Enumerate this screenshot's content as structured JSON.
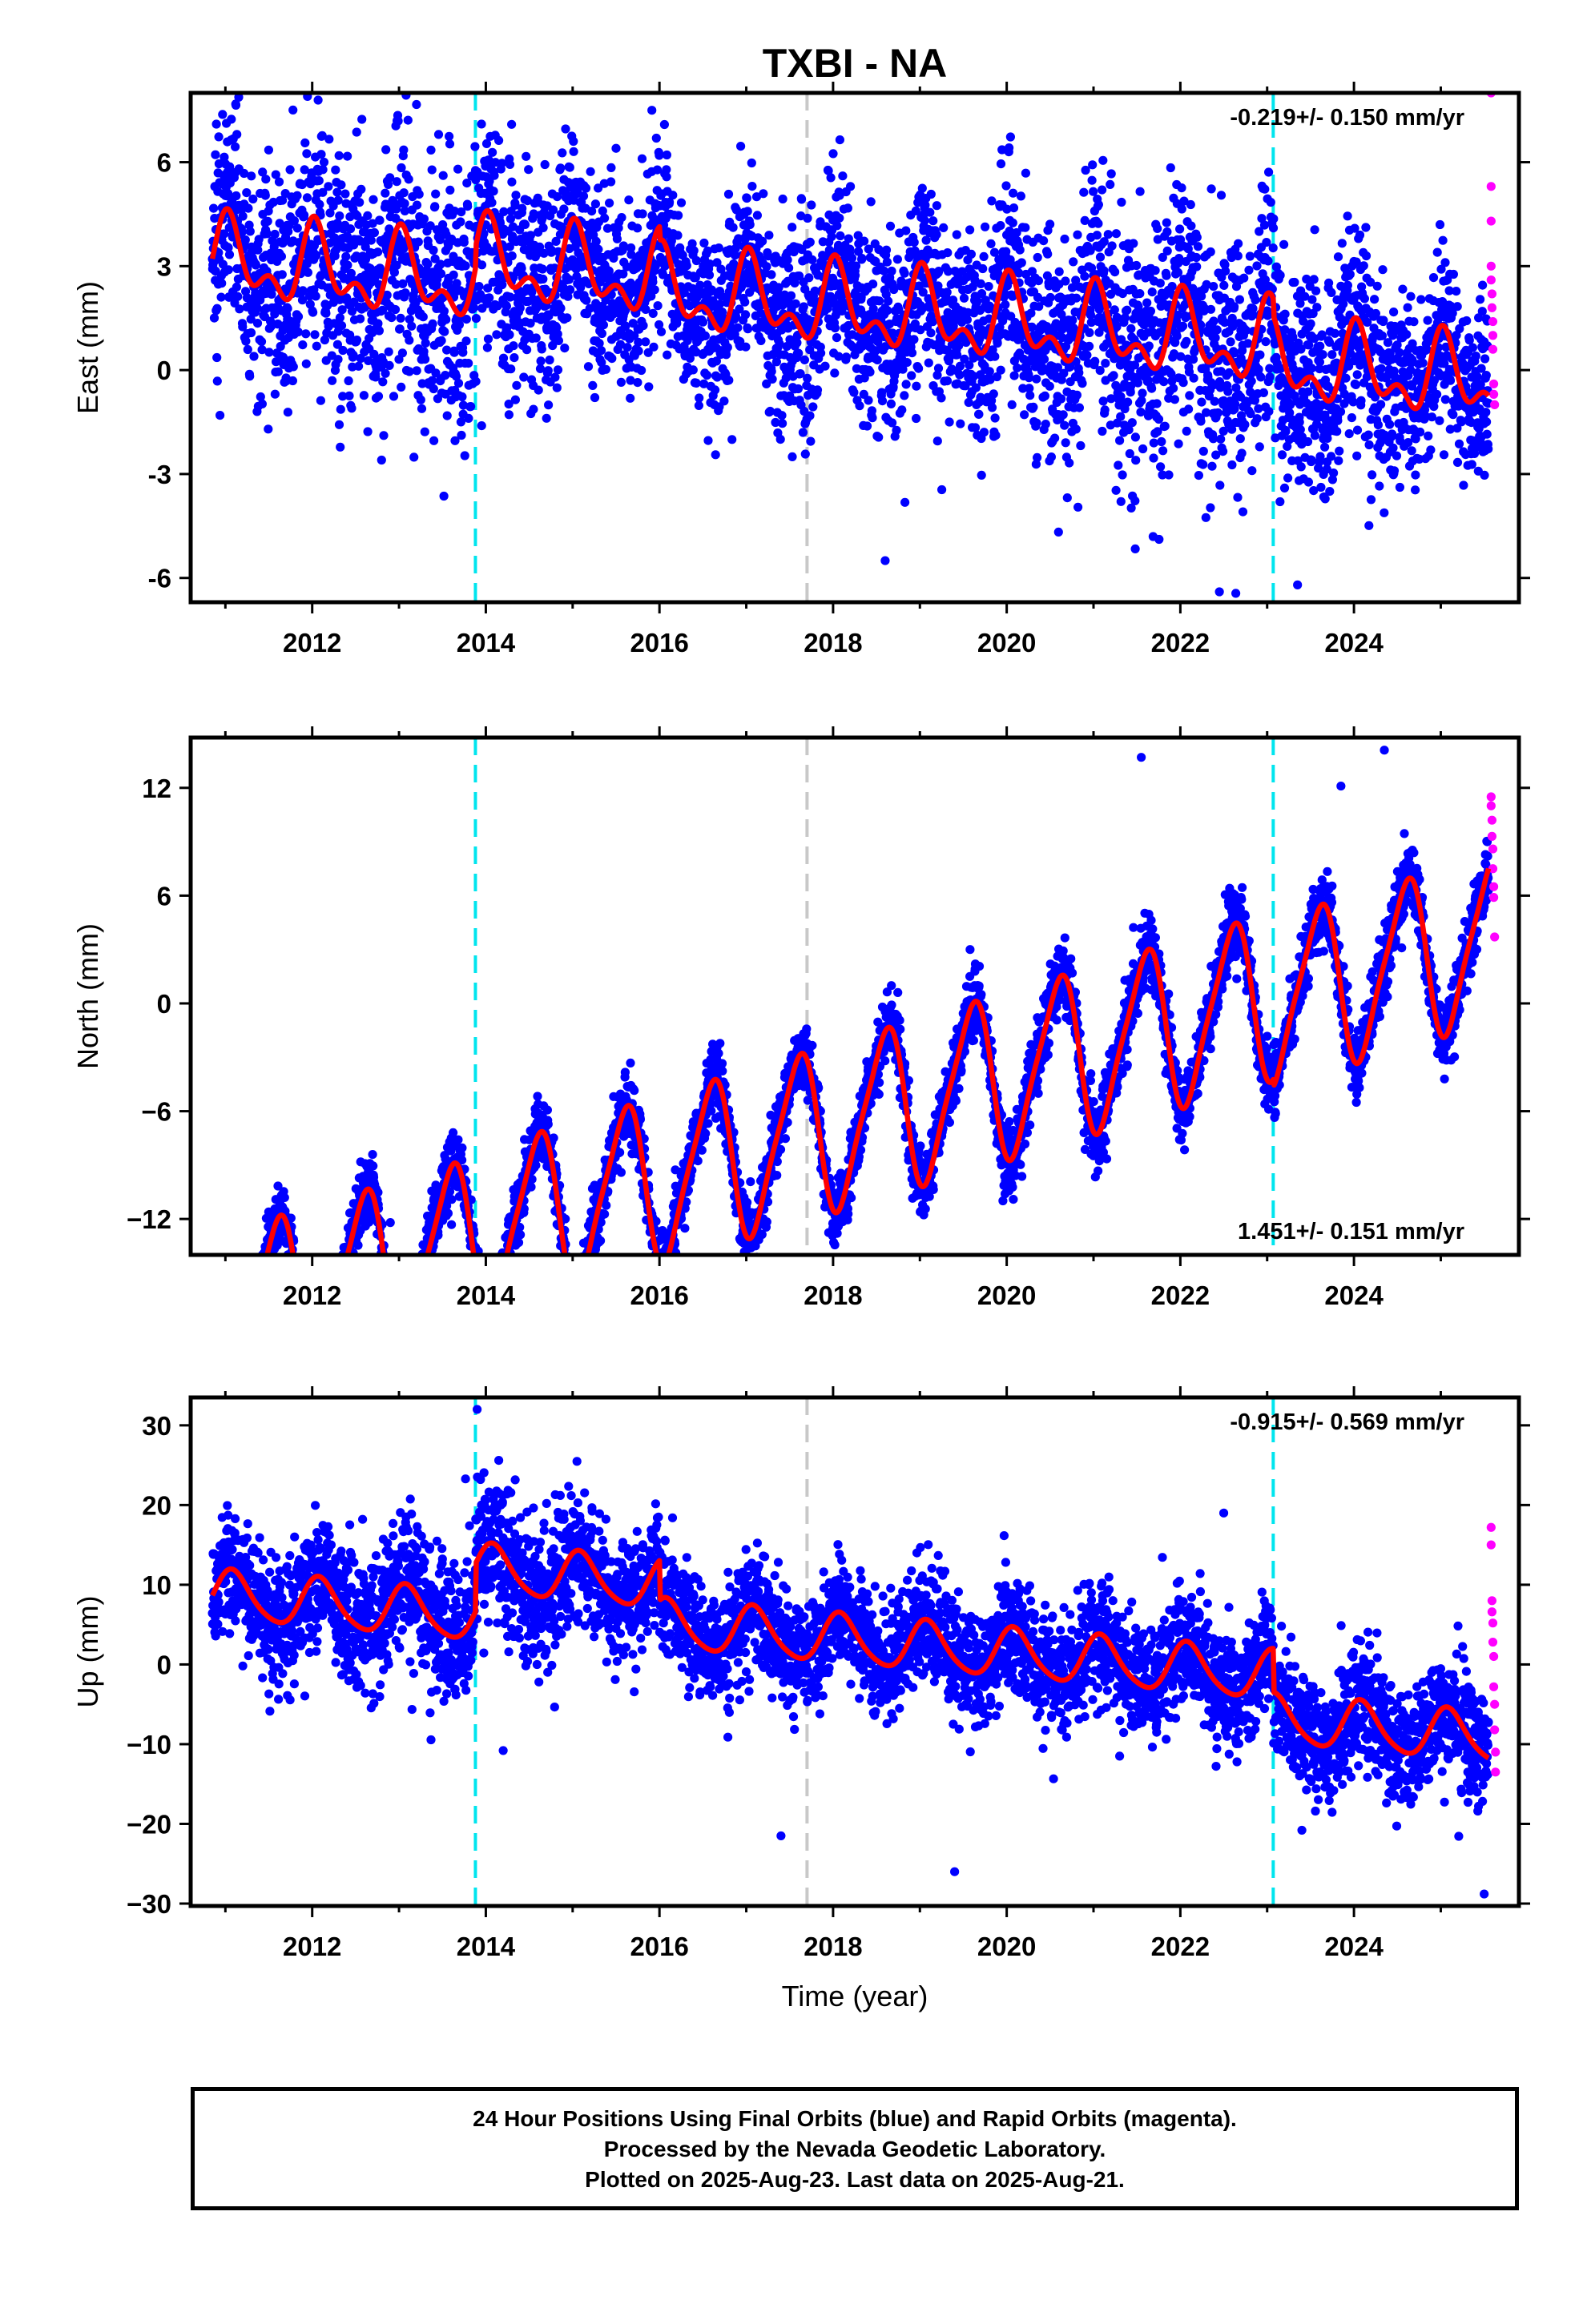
{
  "title": "TXBI - NA",
  "xlabel": "Time (year)",
  "footer": {
    "line1": "24 Hour Positions Using Final Orbits (blue) and Rapid Orbits (magenta).",
    "line2": "Processed by the Nevada Geodetic Laboratory.",
    "line3": "Plotted on 2025-Aug-23. Last data on 2025-Aug-21."
  },
  "colors": {
    "final": "#0000ff",
    "rapid": "#ff00ff",
    "model": "#ff0000",
    "equipment_change": "#00e5ee",
    "other_event": "#c8c8c8"
  },
  "chart_data": [
    {
      "type": "scatter",
      "component": "east",
      "ylabel": "East (mm)",
      "rate_text": "-0.219+/- 0.150 mm/yr",
      "rate_position": "top-right",
      "xlim": [
        2010.6,
        2025.9
      ],
      "ylim": [
        -6.7,
        8.0
      ],
      "xticks": [
        2012,
        2014,
        2016,
        2018,
        2020,
        2022,
        2024
      ],
      "yticks": [
        -6,
        -3,
        0,
        3,
        6
      ],
      "ytick_labels": [
        "-6",
        "-3",
        "0",
        "3",
        "6"
      ],
      "start": 2010.85,
      "end": 2025.55,
      "trend": [
        1.6,
        -0.219
      ],
      "annual": [
        0.9,
        0.25
      ],
      "semiannual": [
        0.6,
        0.1
      ],
      "noise": 1.2,
      "spread_scale": [
        [
          2010.85,
          1.4
        ],
        [
          2013.8,
          1.6
        ],
        [
          2016.0,
          1.0
        ],
        [
          2022.5,
          1.5
        ],
        [
          2025.6,
          1.0
        ]
      ],
      "offsets": [
        [
          2013.88,
          0.6
        ],
        [
          2016.0,
          -0.4
        ],
        [
          2023.07,
          -0.5
        ]
      ],
      "outliers": [
        [
          2013.95,
          7.1
        ],
        [
          2015.5,
          6.4
        ],
        [
          2015.8,
          6.1
        ],
        [
          2018.2,
          5.3
        ],
        [
          2018.6,
          -5.5
        ],
        [
          2022.45,
          -6.4
        ],
        [
          2023.35,
          -6.2
        ],
        [
          2014.9,
          5.5
        ],
        [
          2011.4,
          5.1
        ],
        [
          2012.3,
          4.9
        ]
      ],
      "rapid": [
        [
          2025.58,
          8.0
        ],
        [
          2025.58,
          5.3
        ],
        [
          2025.58,
          4.3
        ],
        [
          2025.58,
          3.0
        ],
        [
          2025.58,
          2.6
        ],
        [
          2025.59,
          2.2
        ],
        [
          2025.59,
          1.8
        ],
        [
          2025.6,
          1.4
        ],
        [
          2025.6,
          1.0
        ],
        [
          2025.6,
          0.6
        ],
        [
          2025.61,
          -0.4
        ],
        [
          2025.61,
          -0.7
        ],
        [
          2025.62,
          -1.0
        ]
      ]
    },
    {
      "type": "scatter",
      "component": "north",
      "ylabel": "North (mm)",
      "rate_text": "1.451+/- 0.151 mm/yr",
      "rate_position": "bottom-right",
      "xlim": [
        2010.6,
        2025.9
      ],
      "ylim": [
        -14.0,
        14.8
      ],
      "xticks": [
        2012,
        2014,
        2016,
        2018,
        2020,
        2022,
        2024
      ],
      "yticks": [
        -12,
        -6,
        0,
        6,
        12
      ],
      "ytick_labels": [
        "−12",
        "−6",
        "0",
        "6",
        "12"
      ],
      "start": 2010.85,
      "end": 2025.55,
      "trend": [
        -7.2,
        1.451
      ],
      "annual": [
        -3.8,
        -2.3
      ],
      "semiannual": [
        -0.8,
        0.3
      ],
      "noise": 0.9,
      "spread_scale": [
        [
          2010.85,
          1.0
        ],
        [
          2025.6,
          1.1
        ]
      ],
      "offsets": [
        [
          2013.88,
          0.3
        ],
        [
          2023.07,
          -0.4
        ]
      ],
      "outliers": [
        [
          2021.55,
          13.7
        ],
        [
          2024.35,
          14.1
        ],
        [
          2012.9,
          -12.2
        ],
        [
          2023.85,
          12.1
        ]
      ],
      "rapid": [
        [
          2025.58,
          11.5
        ],
        [
          2025.58,
          11.0
        ],
        [
          2025.59,
          10.2
        ],
        [
          2025.59,
          9.3
        ],
        [
          2025.6,
          8.6
        ],
        [
          2025.6,
          7.5
        ],
        [
          2025.61,
          6.5
        ],
        [
          2025.61,
          5.9
        ],
        [
          2025.62,
          3.7
        ]
      ]
    },
    {
      "type": "scatter",
      "component": "up",
      "ylabel": "Up (mm)",
      "rate_text": "-0.915+/- 0.569 mm/yr",
      "rate_position": "top-right",
      "xlim": [
        2010.6,
        2025.9
      ],
      "ylim": [
        -30.3,
        33.5
      ],
      "xticks": [
        2012,
        2014,
        2016,
        2018,
        2020,
        2022,
        2024
      ],
      "yticks": [
        -30,
        -20,
        -10,
        0,
        10,
        20,
        30
      ],
      "ytick_labels": [
        "−30",
        "−20",
        "−10",
        "0",
        "10",
        "20",
        "30"
      ],
      "start": 2010.85,
      "end": 2025.55,
      "trend": [
        2.2,
        -0.915
      ],
      "annual": [
        2.6,
        1.6
      ],
      "semiannual": [
        0.4,
        0.2
      ],
      "noise": 3.6,
      "spread_scale": [
        [
          2010.85,
          1.0
        ],
        [
          2013.9,
          1.3
        ],
        [
          2016.0,
          1.0
        ],
        [
          2025.6,
          1.0
        ]
      ],
      "offsets": [
        [
          2013.88,
          6.0
        ],
        [
          2016.0,
          -5.0
        ],
        [
          2023.07,
          -5.5
        ]
      ],
      "outliers": [
        [
          2013.9,
          32.0
        ],
        [
          2013.95,
          20.0
        ],
        [
          2014.8,
          21.3
        ],
        [
          2014.7,
          20.2
        ],
        [
          2017.4,
          -21.5
        ],
        [
          2019.4,
          -26.0
        ],
        [
          2025.5,
          -28.8
        ],
        [
          2022.5,
          19.0
        ],
        [
          2014.2,
          -10.8
        ],
        [
          2023.4,
          -20.8
        ]
      ],
      "rapid": [
        [
          2025.58,
          17.2
        ],
        [
          2025.58,
          15.0
        ],
        [
          2025.59,
          8.0
        ],
        [
          2025.59,
          6.6
        ],
        [
          2025.6,
          5.2
        ],
        [
          2025.6,
          2.8
        ],
        [
          2025.61,
          1.0
        ],
        [
          2025.61,
          -2.8
        ],
        [
          2025.62,
          -5.0
        ],
        [
          2025.62,
          -8.2
        ],
        [
          2025.63,
          -11.0
        ],
        [
          2025.63,
          -13.5
        ]
      ]
    }
  ],
  "events": [
    {
      "x": 2013.88,
      "kind": "equipment_change"
    },
    {
      "x": 2017.7,
      "kind": "other_event"
    },
    {
      "x": 2023.07,
      "kind": "equipment_change"
    }
  ]
}
